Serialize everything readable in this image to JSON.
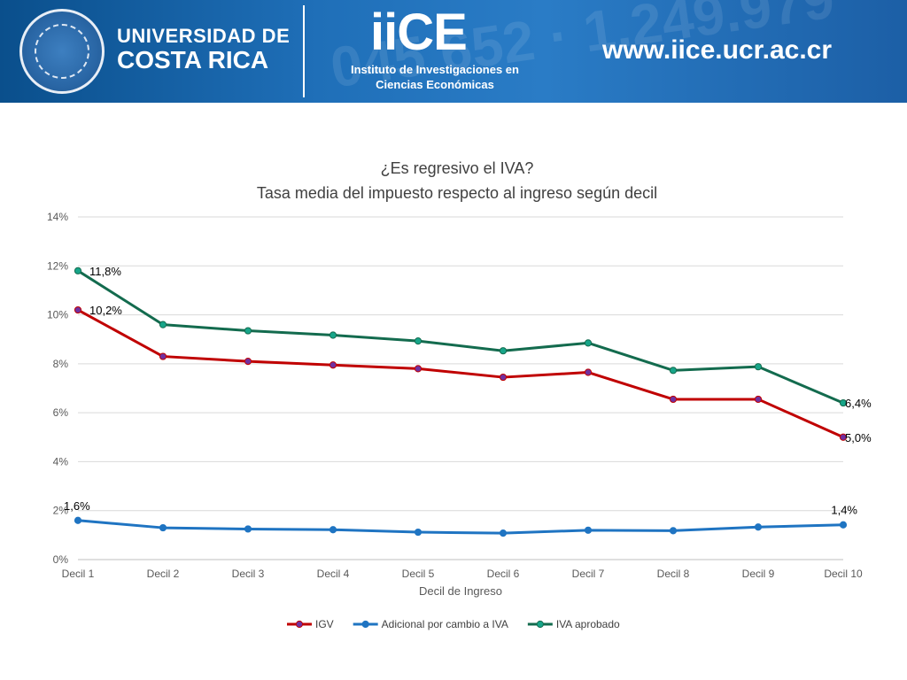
{
  "banner": {
    "university_line1": "UNIVERSIDAD DE",
    "university_line2": "COSTA RICA",
    "institute_logo": "iiCE",
    "institute_name_line1": "Instituto de Investigaciones en",
    "institute_name_line2": "Ciencias Económicas",
    "website": "www.iice.ucr.ac.cr",
    "background_texture": "045 652 · 1.249.979",
    "seal_icon": "university-seal-icon",
    "color": "#1f6fb8"
  },
  "chart_data": {
    "type": "line",
    "title": "¿Es regresivo el IVA?",
    "subtitle": "Tasa media del impuesto respecto  al ingreso según decil",
    "xlabel": "Decil de Ingreso",
    "ylabel": "",
    "categories": [
      "Decil 1",
      "Decil 2",
      "Decil 3",
      "Decil 4",
      "Decil 5",
      "Decil 6",
      "Decil 7",
      "Decil 8",
      "Decil 9",
      "Decil 10"
    ],
    "y_ticks": [
      "0%",
      "2%",
      "4%",
      "6%",
      "8%",
      "10%",
      "12%",
      "14%"
    ],
    "ylim": [
      0,
      14
    ],
    "grid": true,
    "legend_position": "bottom",
    "series": [
      {
        "name": "IGV",
        "color": "#c00000",
        "marker_color": "#7030a0",
        "values": [
          10.2,
          8.3,
          8.1,
          7.95,
          7.8,
          7.45,
          7.65,
          6.55,
          6.55,
          5.0
        ],
        "labels": [
          {
            "index": 0,
            "text": "10,2%"
          },
          {
            "index": 9,
            "text": "5,0%"
          }
        ]
      },
      {
        "name": "Adicional por cambio a IVA",
        "color": "#1f74c2",
        "marker_color": "#1f74c2",
        "values": [
          1.6,
          1.3,
          1.25,
          1.22,
          1.12,
          1.08,
          1.2,
          1.18,
          1.33,
          1.42
        ],
        "labels": [
          {
            "index": 0,
            "text": "1,6%"
          },
          {
            "index": 9,
            "text": "1,4%"
          }
        ]
      },
      {
        "name": "IVA aprobado",
        "color": "#136b4e",
        "marker_color": "#17a589",
        "values": [
          11.8,
          9.6,
          9.35,
          9.17,
          8.93,
          8.53,
          8.85,
          7.73,
          7.88,
          6.4
        ],
        "labels": [
          {
            "index": 0,
            "text": "11,8%"
          },
          {
            "index": 9,
            "text": "6,4%"
          }
        ]
      }
    ]
  }
}
